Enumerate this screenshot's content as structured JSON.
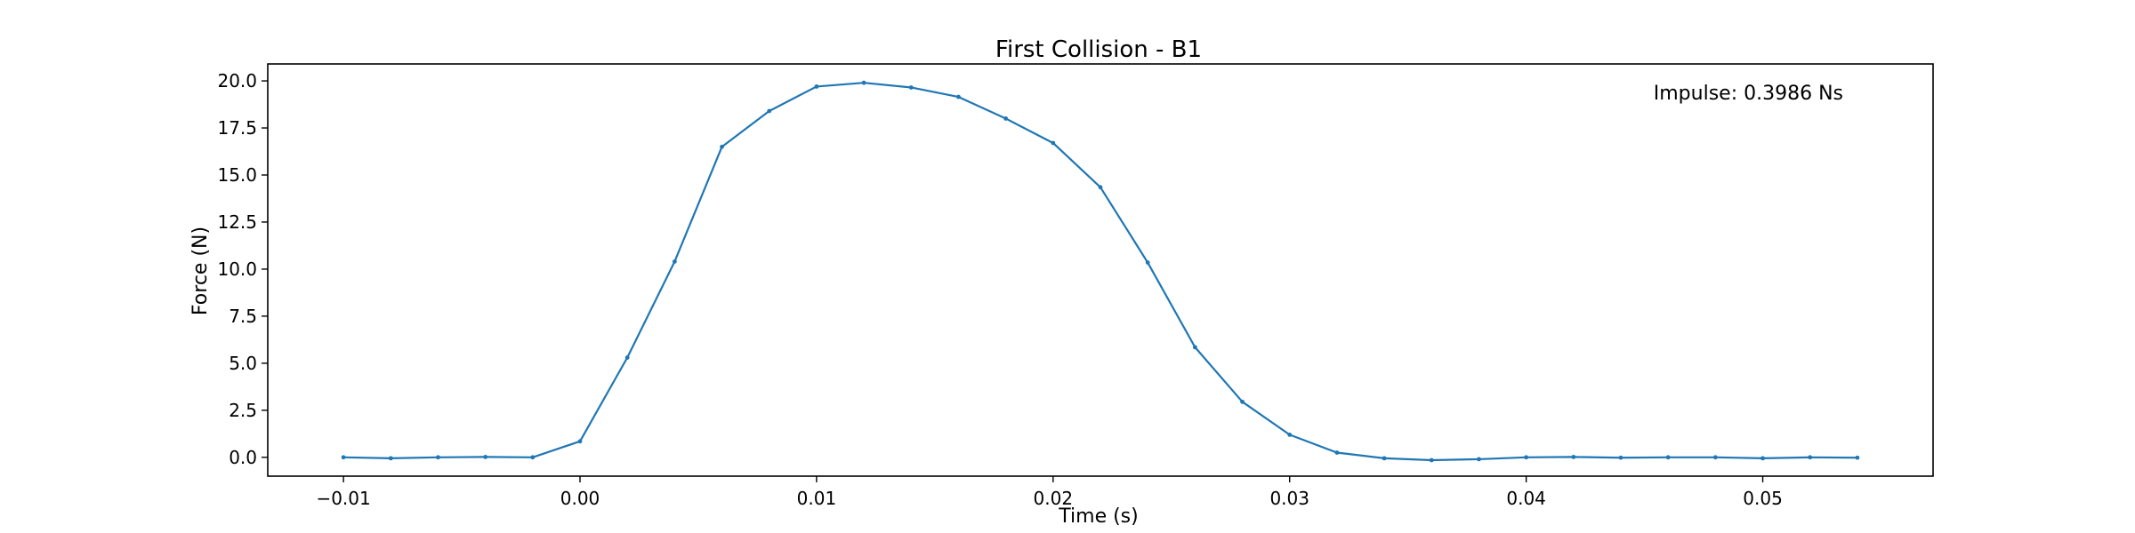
{
  "chart_data": {
    "type": "line",
    "title": "First Collision - B1",
    "xlabel": "Time (s)",
    "ylabel": "Force (N)",
    "xlim": [
      -0.0132,
      0.0572
    ],
    "ylim": [
      -1.0,
      20.9
    ],
    "grid": false,
    "x_ticks": [
      -0.01,
      0.0,
      0.01,
      0.02,
      0.03,
      0.04,
      0.05
    ],
    "x_tick_labels": [
      "−0.01",
      "0.00",
      "0.01",
      "0.02",
      "0.03",
      "0.04",
      "0.05"
    ],
    "y_ticks": [
      0.0,
      2.5,
      5.0,
      7.5,
      10.0,
      12.5,
      15.0,
      17.5,
      20.0
    ],
    "y_tick_labels": [
      "0.0",
      "2.5",
      "5.0",
      "7.5",
      "10.0",
      "12.5",
      "15.0",
      "17.5",
      "20.0"
    ],
    "annotation": "Impulse: 0.3986 Ns",
    "series": [
      {
        "color": "#1f77b4",
        "x": [
          -0.01,
          -0.008,
          -0.006,
          -0.004,
          -0.002,
          0.0,
          0.002,
          0.004,
          0.006,
          0.008,
          0.01,
          0.012,
          0.014,
          0.016,
          0.018,
          0.02,
          0.022,
          0.024,
          0.026,
          0.028,
          0.03,
          0.032,
          0.034,
          0.036,
          0.038,
          0.04,
          0.042,
          0.044,
          0.046,
          0.048,
          0.05,
          0.052,
          0.054
        ],
        "y": [
          0.0,
          -0.05,
          0.0,
          0.02,
          0.0,
          0.85,
          5.3,
          10.4,
          16.5,
          18.4,
          19.7,
          19.9,
          19.65,
          19.15,
          18.0,
          16.7,
          14.35,
          10.35,
          5.85,
          2.95,
          1.2,
          0.25,
          -0.05,
          -0.15,
          -0.1,
          0.0,
          0.02,
          -0.02,
          0.0,
          0.0,
          -0.05,
          0.0,
          -0.02
        ]
      }
    ]
  }
}
